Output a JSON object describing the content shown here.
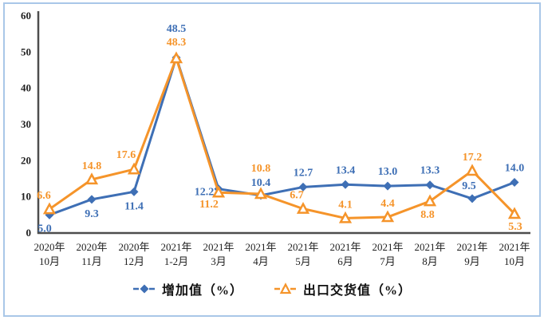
{
  "frame": {
    "border_color": "#a9c7e8",
    "background": "#ffffff"
  },
  "chart_data": {
    "type": "line",
    "title": "",
    "xlabel": "",
    "ylabel": "",
    "ylim": [
      0,
      60
    ],
    "ytick_step": 10,
    "ytick_labels": [
      "0",
      "10",
      "20",
      "30",
      "40",
      "50",
      "60"
    ],
    "grid": false,
    "legend_position": "bottom-center",
    "axis_color": "#4d4d4d",
    "categories": [
      [
        "2020年",
        "10月"
      ],
      [
        "2020年",
        "11月"
      ],
      [
        "2020年",
        "12月"
      ],
      [
        "2021年",
        "1-2月"
      ],
      [
        "2021年",
        "3月"
      ],
      [
        "2021年",
        "4月"
      ],
      [
        "2021年",
        "5月"
      ],
      [
        "2021年",
        "6月"
      ],
      [
        "2021年",
        "7月"
      ],
      [
        "2021年",
        "8月"
      ],
      [
        "2021年",
        "9月"
      ],
      [
        "2021年",
        "10月"
      ]
    ],
    "series": [
      {
        "name": "增加值（%）",
        "color": "#3e6fb5",
        "marker": "diamond",
        "values": [
          5.0,
          9.3,
          11.4,
          48.5,
          12.2,
          10.4,
          12.7,
          13.4,
          13.0,
          13.3,
          9.5,
          14.0
        ],
        "labels": [
          "5.0",
          "9.3",
          "11.4",
          "48.5",
          "12.2",
          "10.4",
          "12.7",
          "13.4",
          "13.0",
          "13.3",
          "9.5",
          "14.0"
        ],
        "label_offsets": [
          [
            -6,
            21
          ],
          [
            0,
            22
          ],
          [
            0,
            22
          ],
          [
            0,
            -32
          ],
          [
            -18,
            8
          ],
          [
            0,
            -12
          ],
          [
            0,
            -14
          ],
          [
            0,
            -14
          ],
          [
            0,
            -14
          ],
          [
            0,
            -14
          ],
          [
            -4,
            -12
          ],
          [
            0,
            -14
          ]
        ]
      },
      {
        "name": "出口交货值（%）",
        "color": "#f5942a",
        "marker": "triangle-open",
        "values": [
          6.6,
          14.8,
          17.6,
          48.3,
          11.2,
          10.8,
          6.7,
          4.1,
          4.4,
          8.8,
          17.2,
          5.3
        ],
        "labels": [
          "6.6",
          "14.8",
          "17.6",
          "48.3",
          "11.2",
          "10.8",
          "6.7",
          "4.1",
          "4.4",
          "8.8",
          "17.2",
          "5.3"
        ],
        "label_offsets": [
          [
            -7,
            -13
          ],
          [
            0,
            -13
          ],
          [
            -10,
            -14
          ],
          [
            0,
            -16
          ],
          [
            -12,
            19
          ],
          [
            0,
            -28
          ],
          [
            -8,
            -13
          ],
          [
            0,
            -13
          ],
          [
            0,
            -13
          ],
          [
            -3,
            21
          ],
          [
            0,
            -13
          ],
          [
            1,
            20
          ]
        ]
      }
    ]
  }
}
